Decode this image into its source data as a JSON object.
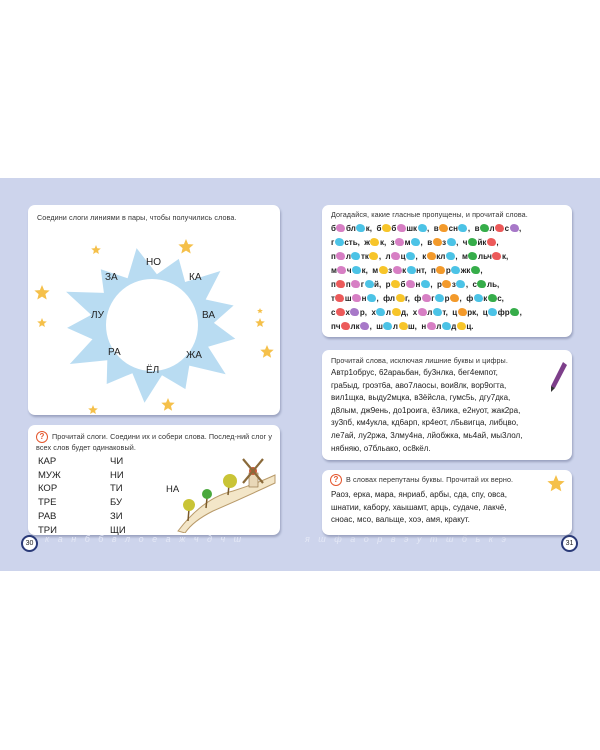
{
  "colors": {
    "pink": "#d77fc4",
    "cyan": "#4cc3e6",
    "yellow": "#f7c52a",
    "orange": "#f39a2b",
    "green": "#36ad4a",
    "red": "#ec5a5a",
    "purple": "#a778c8",
    "sun": "#b9dcf2",
    "star": "#f5c04a",
    "background": "#cdd4ec"
  },
  "left_page": {
    "page_number": "30",
    "task1": {
      "instruction": "Соедини слоги линиями в пары, чтобы получились слова.",
      "syllables": [
        "НО",
        "КА",
        "ВА",
        "ЖА",
        "ЁЛ",
        "РА",
        "ЛУ",
        "ЗА"
      ]
    },
    "task2": {
      "icon": "question-icon",
      "instruction": "Прочитай слоги. Соедини их и собери слова. Послед-ний слог у всех слов будет одинаковый.",
      "col1": [
        "КАР",
        "МУЖ",
        "КОР",
        "ТРЕ",
        "РАВ",
        "ТРИ"
      ],
      "col2": [
        "ЧИ",
        "НИ",
        "ТИ",
        "БУ",
        "ЗИ",
        "ЩИ"
      ],
      "last": "НА"
    }
  },
  "right_page": {
    "page_number": "31",
    "task1": {
      "instruction": "Догадайся, какие гласные пропущены, и прочитай слова.",
      "lines": [
        [
          "б",
          {
            "blob": "pink"
          },
          "бл",
          {
            "blob": "cyan"
          },
          "к,  б",
          {
            "blob": "yellow"
          },
          "б",
          {
            "blob": "pink"
          },
          "шк",
          {
            "blob": "cyan"
          },
          ",  в",
          {
            "blob": "orange"
          },
          "сн",
          {
            "blob": "cyan"
          },
          ",  в",
          {
            "blob": "green"
          },
          "л",
          {
            "blob": "red"
          },
          "с",
          {
            "blob": "purple"
          },
          ","
        ],
        [
          "г",
          {
            "blob": "cyan"
          },
          "сть,  ж",
          {
            "blob": "yellow"
          },
          "к,  з",
          {
            "blob": "pink"
          },
          "м",
          {
            "blob": "cyan"
          },
          ",  в",
          {
            "blob": "orange"
          },
          "з",
          {
            "blob": "cyan"
          },
          ",  ч",
          {
            "blob": "green"
          },
          "йк",
          {
            "blob": "red"
          },
          ","
        ],
        [
          "п",
          {
            "blob": "pink"
          },
          "л",
          {
            "blob": "cyan"
          },
          "тк",
          {
            "blob": "yellow"
          },
          ",  л",
          {
            "blob": "pink"
          },
          "ц",
          {
            "blob": "cyan"
          },
          ",  к",
          {
            "blob": "orange"
          },
          "кл",
          {
            "blob": "cyan"
          },
          ",  м",
          {
            "blob": "green"
          },
          "льч",
          {
            "blob": "red"
          },
          "к,"
        ],
        [
          "м",
          {
            "blob": "pink"
          },
          "ч",
          {
            "blob": "cyan"
          },
          "к,  м",
          {
            "blob": "yellow"
          },
          "з",
          {
            "blob": "pink"
          },
          "к",
          {
            "blob": "cyan"
          },
          "нт,  п",
          {
            "blob": "orange"
          },
          "р",
          {
            "blob": "cyan"
          },
          "жк",
          {
            "blob": "green"
          },
          ","
        ],
        [
          "п",
          {
            "blob": "red"
          },
          "п",
          {
            "blob": "pink"
          },
          "г",
          {
            "blob": "cyan"
          },
          "й,  р",
          {
            "blob": "yellow"
          },
          "б",
          {
            "blob": "pink"
          },
          "н",
          {
            "blob": "cyan"
          },
          ",  р",
          {
            "blob": "orange"
          },
          "з",
          {
            "blob": "cyan"
          },
          ",  с",
          {
            "blob": "green"
          },
          "ль,"
        ],
        [
          "т",
          {
            "blob": "red"
          },
          "ш",
          {
            "blob": "pink"
          },
          "н",
          {
            "blob": "cyan"
          },
          ",  фл",
          {
            "blob": "yellow"
          },
          "г,  ф",
          {
            "blob": "pink"
          },
          "г",
          {
            "blob": "cyan"
          },
          "р",
          {
            "blob": "orange"
          },
          ",  ф",
          {
            "blob": "cyan"
          },
          "к",
          {
            "blob": "green"
          },
          "с,"
        ],
        [
          "с",
          {
            "blob": "red"
          },
          "х",
          {
            "blob": "purple"
          },
          "р,  х",
          {
            "blob": "cyan"
          },
          "л",
          {
            "blob": "yellow"
          },
          "д,  х",
          {
            "blob": "pink"
          },
          "л",
          {
            "blob": "cyan"
          },
          "т,  ц",
          {
            "blob": "orange"
          },
          "рк,  ц",
          {
            "blob": "cyan"
          },
          "фр",
          {
            "blob": "green"
          },
          ","
        ],
        [
          "пч",
          {
            "blob": "red"
          },
          "лк",
          {
            "blob": "purple"
          },
          ",  ш",
          {
            "blob": "cyan"
          },
          "л",
          {
            "blob": "yellow"
          },
          "ш,  н",
          {
            "blob": "pink"
          },
          "л",
          {
            "blob": "cyan"
          },
          "д",
          {
            "blob": "yellow"
          },
          "ц."
        ]
      ]
    },
    "task2": {
      "instruction": "Прочитай слова, исключая лишние буквы и цифры.",
      "icon": "pencil-icon",
      "lines": [
        "Автр1обрус,  62араьбан,  бу3нлка,  бег4емпот,",
        "гра5ыд,  гроэт6а,  аво7лаосы,  вои8лк,  вор9огта,",
        "вил1щка,  выду2мцка,  в3ёйсла,  гумс5ь,  дгу7дка,",
        "д8лым,  дж9ень,  до1роига,  ё3лика,  е2нуот,  жак2ра,",
        "зу3пб,  км4укла,  кд6арп,  кр4еот,  л5ьвигца,  либцво,",
        "ле7ай,  лу2ржа,  3лму4на,  лйобжка,  мь4ай,  мы3лол,",
        "нябняю,  о7бльако,  ос8кёл."
      ]
    },
    "task3": {
      "icon": "question-icon",
      "instruction": "В словах перепутаны буквы. Прочитай их верно.",
      "lines": [
        "Раоз,  ерка,  мара,  янриаб,  арбы,  сда,  спу,  овса,",
        "шнатии,  кабору,  хаышамт,  арць,  судаче,  лакчё,",
        "сноас,  мсо,  вальще,  хоэ,  амя,  кракут."
      ]
    }
  },
  "decor_letters_left": "к а н б б в л о е а ж ч д ч ш",
  "decor_letters_right": "я ш ф а о р в э у т ш б ь к э"
}
